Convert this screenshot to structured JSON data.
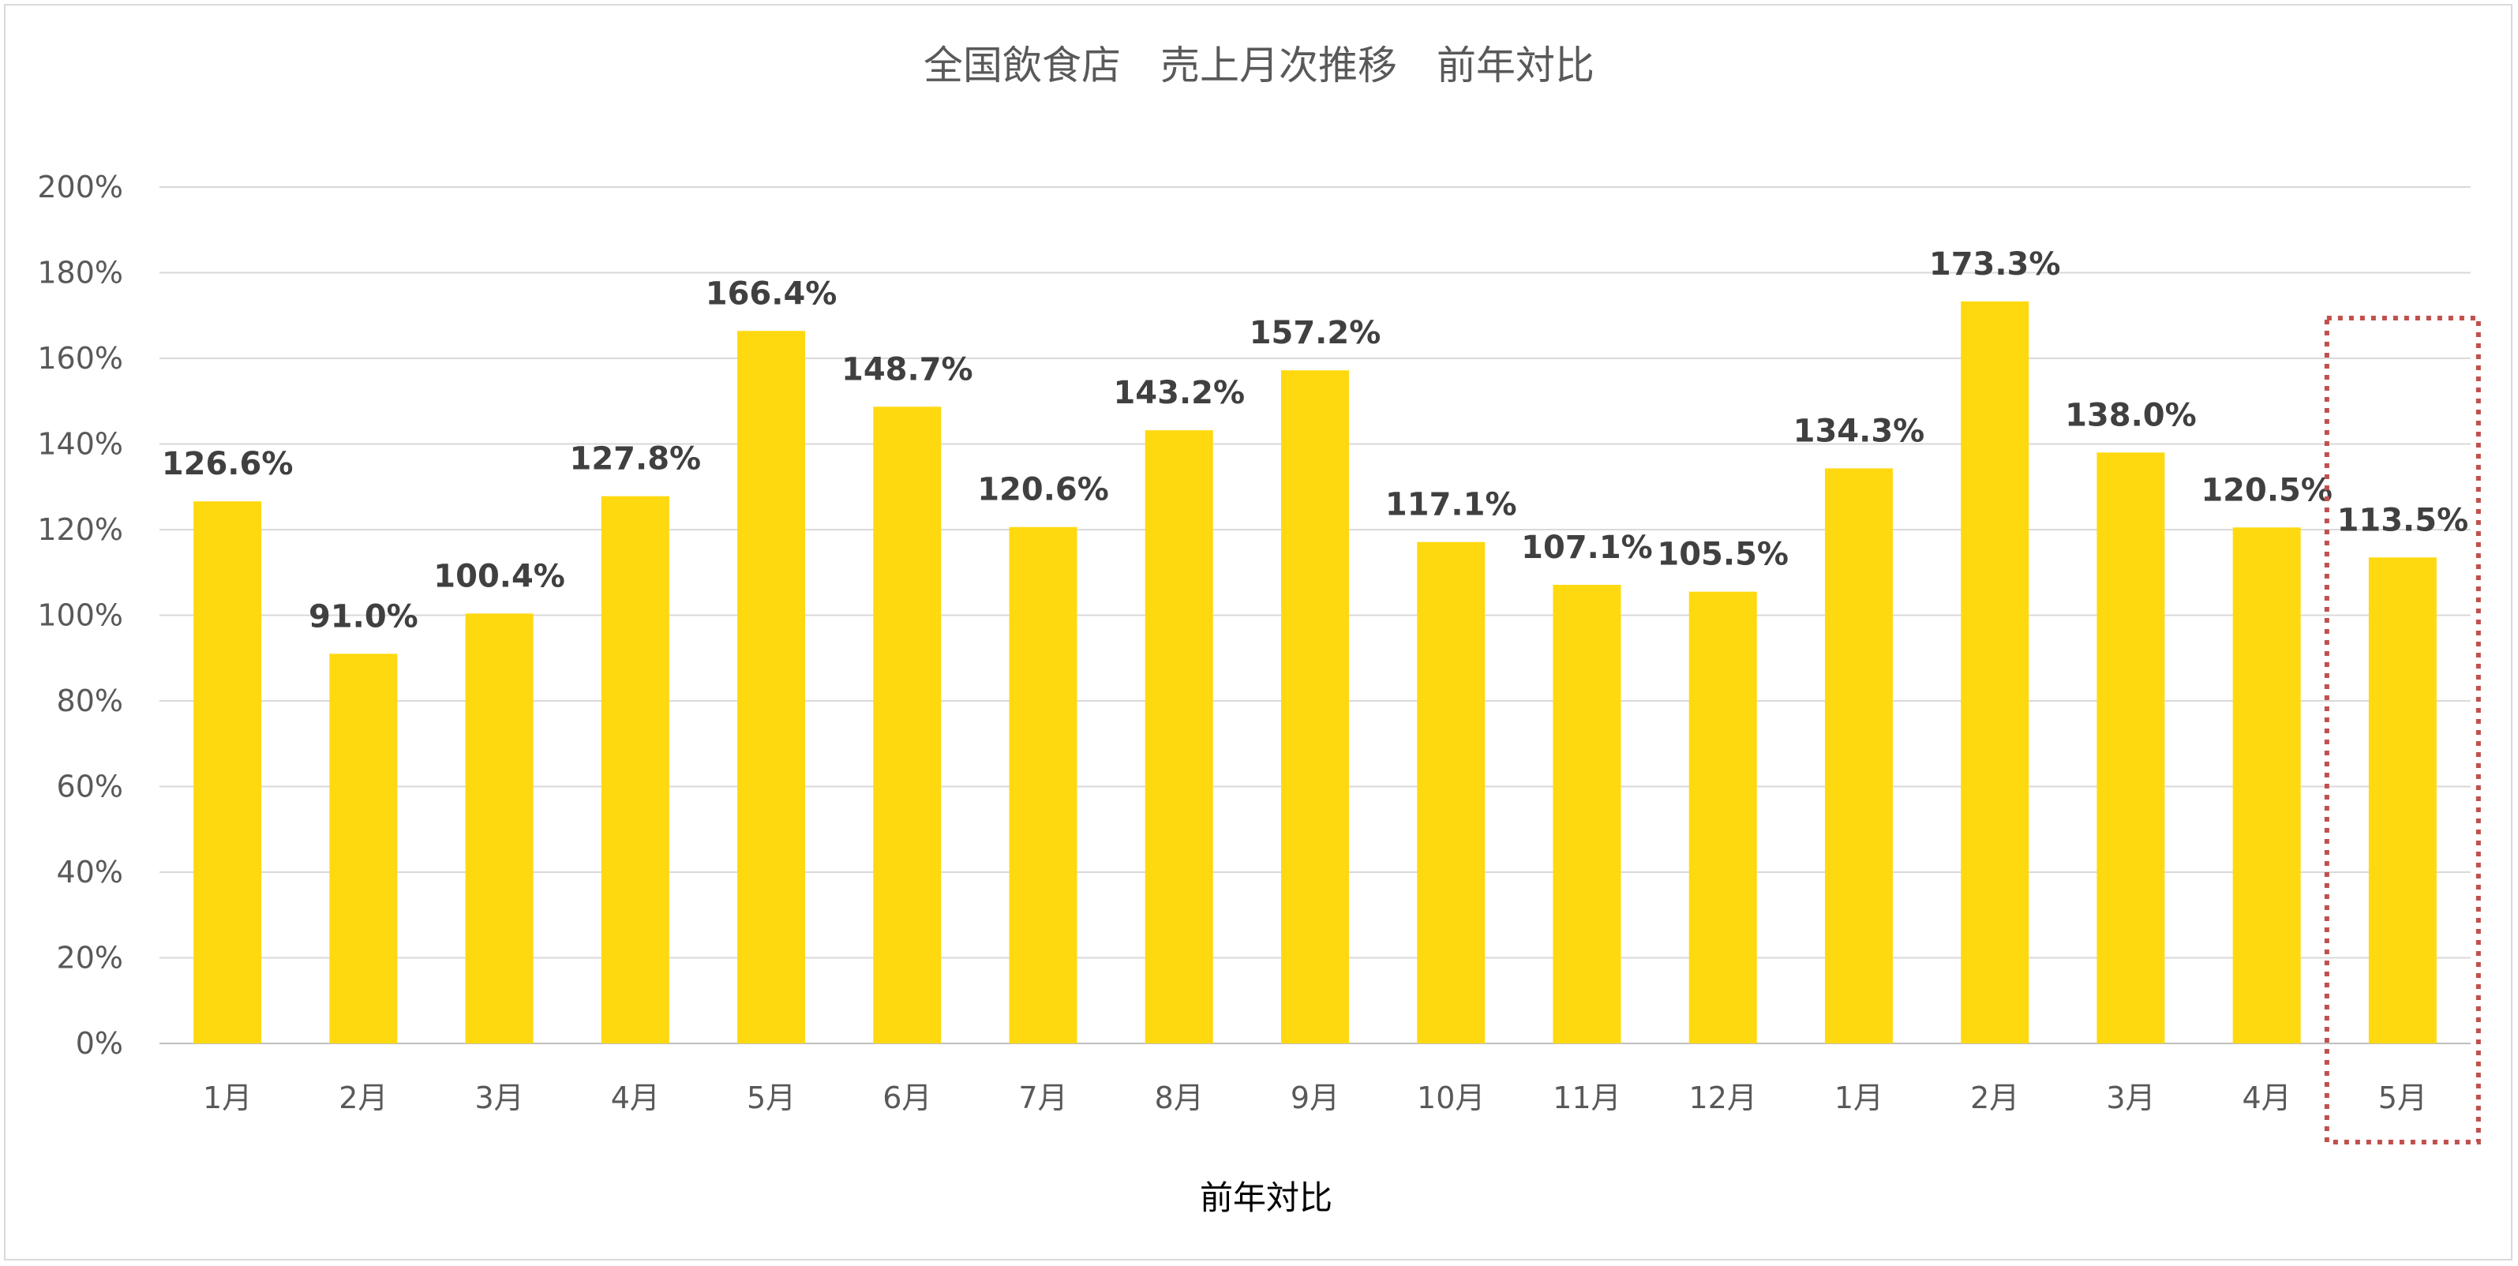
{
  "chart_data": {
    "type": "bar",
    "title": "全国飲食店　売上月次推移　前年対比",
    "xlabel": "前年対比",
    "ylabel": "",
    "categories": [
      "1月",
      "2月",
      "3月",
      "4月",
      "5月",
      "6月",
      "7月",
      "8月",
      "9月",
      "10月",
      "11月",
      "12月",
      "1月",
      "2月",
      "3月",
      "4月",
      "5月"
    ],
    "values": [
      126.6,
      91.0,
      100.4,
      127.8,
      166.4,
      148.7,
      120.6,
      143.2,
      157.2,
      117.1,
      107.1,
      105.5,
      134.3,
      173.3,
      138.0,
      120.5,
      113.5
    ],
    "data_labels": [
      "126.6%",
      "91.0%",
      "100.4%",
      "127.8%",
      "166.4%",
      "148.7%",
      "120.6%",
      "143.2%",
      "157.2%",
      "117.1%",
      "107.1%",
      "105.5%",
      "134.3%",
      "173.3%",
      "138.0%",
      "120.5%",
      "113.5%"
    ],
    "y_ticks": [
      "0%",
      "20%",
      "40%",
      "60%",
      "80%",
      "100%",
      "120%",
      "140%",
      "160%",
      "180%",
      "200%"
    ],
    "ylim": [
      0,
      200
    ],
    "grid": true,
    "legend": "none",
    "highlighted_index": 16,
    "colors": {
      "bar": "#FFD90F",
      "highlight_box": "#C0504D",
      "grid": "#D9D9D9",
      "axis": "#BFBFBF"
    }
  }
}
